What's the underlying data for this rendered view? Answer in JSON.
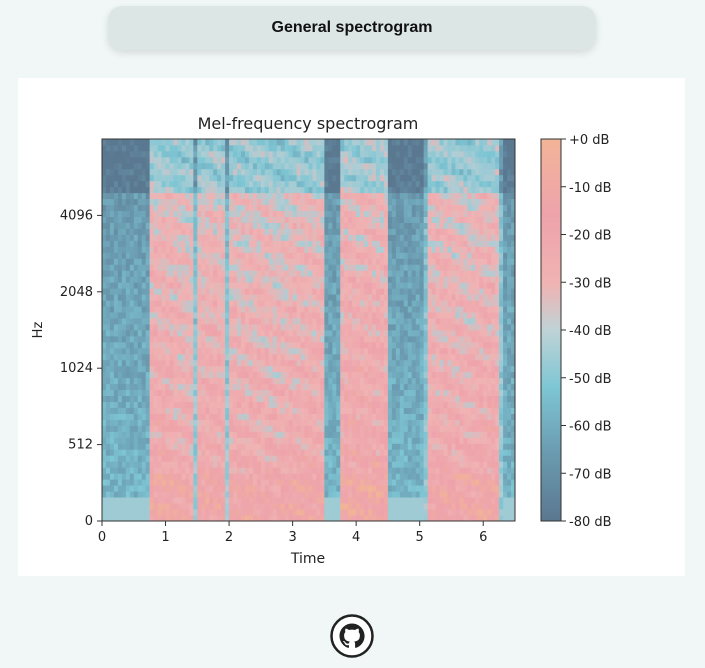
{
  "header": {
    "title": "General spectrogram"
  },
  "chart_data": {
    "type": "heatmap",
    "title": "Mel-frequency spectrogram",
    "xlabel": "Time",
    "ylabel": "Hz",
    "xlim": [
      0,
      6.5
    ],
    "x_ticks": [
      "0",
      "1",
      "2",
      "3",
      "4",
      "5",
      "6"
    ],
    "y_ticks": [
      "0",
      "512",
      "1024",
      "2048",
      "4096"
    ],
    "colorbar": {
      "label_ticks": [
        "+0 dB",
        "-10 dB",
        "-20 dB",
        "-30 dB",
        "-40 dB",
        "-50 dB",
        "-60 dB",
        "-70 dB",
        "-80 dB"
      ],
      "range_db": [
        -80,
        0
      ],
      "colors": [
        "#5e7d95",
        "#7ec6d4",
        "#f0b8b8",
        "#eea8ac",
        "#f2b498"
      ]
    }
  },
  "footer": {
    "icon": "github-icon"
  }
}
